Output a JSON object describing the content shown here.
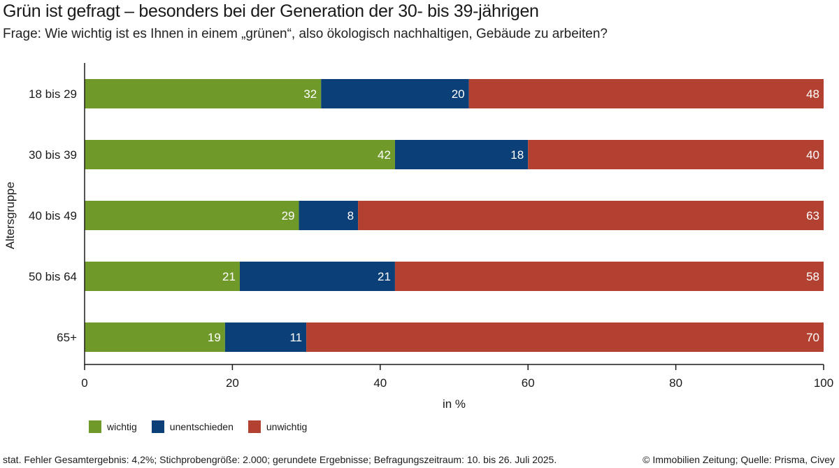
{
  "header": {
    "title": "Grün ist gefragt – besonders bei der Generation der 30- bis 39-jährigen",
    "subtitle": "Frage: Wie wichtig ist es Ihnen in einem „grünen“, also ökologisch nachhaltigen, Gebäude zu arbeiten?"
  },
  "chart_data": {
    "type": "bar",
    "orientation": "horizontal",
    "stacked": true,
    "categories": [
      "18 bis 29",
      "30 bis 39",
      "40 bis 49",
      "50 bis 64",
      "65+"
    ],
    "series": [
      {
        "name": "wichtig",
        "color": "#6f9a2a",
        "values": [
          32,
          42,
          29,
          21,
          19
        ]
      },
      {
        "name": "unentschieden",
        "color": "#0b3f78",
        "values": [
          20,
          18,
          8,
          21,
          11
        ]
      },
      {
        "name": "unwichtig",
        "color": "#b34131",
        "values": [
          48,
          40,
          63,
          58,
          70
        ]
      }
    ],
    "xlabel": "in %",
    "ylabel": "Altersgruppe",
    "xlim": [
      0,
      100
    ],
    "xticks": [
      0,
      20,
      40,
      60,
      80,
      100
    ],
    "grid": false,
    "legend_position": "bottom-left"
  },
  "footer": {
    "note": "stat. Fehler Gesamtergebnis: 4,2%; Stichprobengröße: 2.000; gerundete Ergebnisse; Befragungszeitraum: 10. bis 26. Juli 2025.",
    "source": "© Immobilien Zeitung; Quelle: Prisma, Civey"
  }
}
